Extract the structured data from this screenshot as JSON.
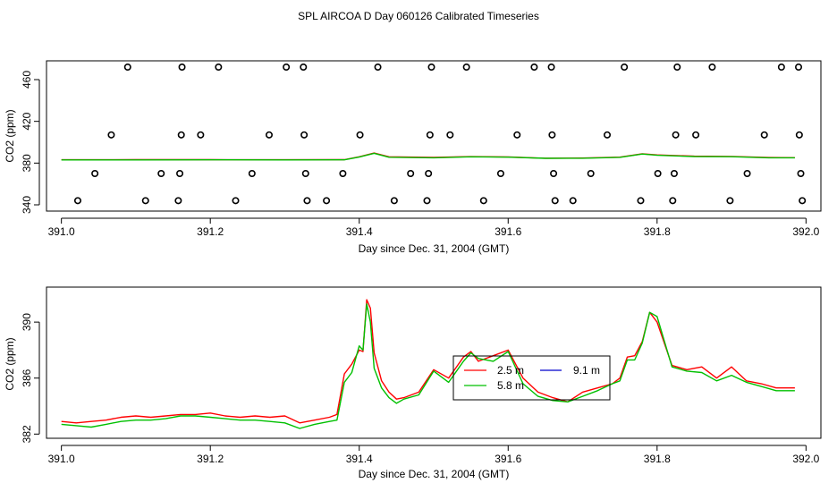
{
  "chart_data": [
    {
      "type": "scatter",
      "title": "SPL AIRCOA D  Day 060126  Calibrated Timeseries",
      "xlabel": "Day since Dec. 31, 2004 (GMT)",
      "ylabel": "CO2 (ppm)",
      "xlim": [
        390.98,
        392.02
      ],
      "ylim": [
        334,
        478
      ],
      "x_ticks": [
        391.0,
        391.2,
        391.4,
        391.6,
        391.8,
        392.0
      ],
      "x_tick_labels": [
        "391.0",
        "391.2",
        "391.4",
        "391.6",
        "391.8",
        "392.0"
      ],
      "y_ticks": [
        340,
        380,
        420,
        460
      ],
      "y_tick_labels": [
        "340",
        "380",
        "420",
        "460"
      ],
      "points": [
        [
          391.022,
          344
        ],
        [
          391.045,
          370
        ],
        [
          391.067,
          407
        ],
        [
          391.089,
          472
        ],
        [
          391.113,
          344
        ],
        [
          391.134,
          370
        ],
        [
          391.157,
          344
        ],
        [
          391.159,
          370
        ],
        [
          391.161,
          407
        ],
        [
          391.162,
          472
        ],
        [
          391.187,
          407
        ],
        [
          391.211,
          472
        ],
        [
          391.234,
          344
        ],
        [
          391.256,
          370
        ],
        [
          391.279,
          407
        ],
        [
          391.302,
          472
        ],
        [
          391.325,
          472
        ],
        [
          391.326,
          407
        ],
        [
          391.328,
          370
        ],
        [
          391.33,
          344
        ],
        [
          391.356,
          344
        ],
        [
          391.378,
          370
        ],
        [
          391.401,
          407
        ],
        [
          391.425,
          472
        ],
        [
          391.447,
          344
        ],
        [
          391.469,
          370
        ],
        [
          391.491,
          344
        ],
        [
          391.493,
          370
        ],
        [
          391.495,
          407
        ],
        [
          391.497,
          472
        ],
        [
          391.522,
          407
        ],
        [
          391.544,
          472
        ],
        [
          391.567,
          344
        ],
        [
          391.59,
          370
        ],
        [
          391.612,
          407
        ],
        [
          391.635,
          472
        ],
        [
          391.658,
          472
        ],
        [
          391.659,
          407
        ],
        [
          391.661,
          370
        ],
        [
          391.663,
          344
        ],
        [
          391.687,
          344
        ],
        [
          391.711,
          370
        ],
        [
          391.733,
          407
        ],
        [
          391.756,
          472
        ],
        [
          391.778,
          344
        ],
        [
          391.801,
          370
        ],
        [
          391.821,
          344
        ],
        [
          391.823,
          370
        ],
        [
          391.825,
          407
        ],
        [
          391.827,
          472
        ],
        [
          391.852,
          407
        ],
        [
          391.874,
          472
        ],
        [
          391.898,
          344
        ],
        [
          391.921,
          370
        ],
        [
          391.944,
          407
        ],
        [
          391.967,
          472
        ],
        [
          391.99,
          472
        ],
        [
          391.991,
          407
        ],
        [
          391.993,
          370
        ],
        [
          391.995,
          344
        ]
      ],
      "series": [
        {
          "name": "2.5 m",
          "color": "#ff0000",
          "x": [
            391.0,
            391.1,
            391.2,
            391.3,
            391.38,
            391.4,
            391.42,
            391.44,
            391.5,
            391.55,
            391.6,
            391.65,
            391.7,
            391.75,
            391.78,
            391.8,
            391.85,
            391.9,
            391.95,
            391.985
          ],
          "y": [
            383.2,
            383.3,
            383.3,
            383.2,
            383.3,
            386.0,
            389.6,
            386.0,
            385.4,
            386.2,
            385.9,
            384.7,
            384.8,
            385.7,
            388.9,
            387.8,
            386.6,
            386.4,
            385.3,
            385.2
          ]
        },
        {
          "name": "5.8 m",
          "color": "#00c000",
          "x": [
            391.0,
            391.1,
            391.2,
            391.3,
            391.38,
            391.4,
            391.42,
            391.44,
            391.5,
            391.55,
            391.6,
            391.65,
            391.7,
            391.75,
            391.78,
            391.8,
            391.85,
            391.9,
            391.95,
            391.985
          ],
          "y": [
            383.0,
            383.0,
            383.1,
            383.0,
            383.1,
            385.8,
            389.4,
            385.6,
            385.1,
            386.0,
            385.7,
            384.6,
            384.7,
            385.5,
            388.7,
            387.5,
            386.3,
            386.1,
            385.1,
            385.1
          ]
        },
        {
          "name": "9.1 m",
          "color": "#0000cc",
          "x": [],
          "y": []
        }
      ]
    },
    {
      "type": "line",
      "title": "",
      "xlabel": "Day since Dec. 31, 2004 (GMT)",
      "ylabel": "CO2 (ppm)",
      "xlim": [
        390.98,
        392.02
      ],
      "ylim": [
        381.7,
        392.5
      ],
      "x_ticks": [
        391.0,
        391.2,
        391.4,
        391.6,
        391.8,
        392.0
      ],
      "x_tick_labels": [
        "391.0",
        "391.2",
        "391.4",
        "391.6",
        "391.8",
        "392.0"
      ],
      "y_ticks": [
        382,
        386,
        390
      ],
      "y_tick_labels": [
        "382",
        "386",
        "390"
      ],
      "legend_position": "center",
      "series": [
        {
          "name": "2.5 m",
          "color": "#ff0000",
          "x": [
            391.0,
            391.02,
            391.04,
            391.06,
            391.08,
            391.1,
            391.12,
            391.14,
            391.16,
            391.18,
            391.2,
            391.22,
            391.24,
            391.26,
            391.28,
            391.3,
            391.32,
            391.34,
            391.36,
            391.37,
            391.38,
            391.39,
            391.4,
            391.405,
            391.41,
            391.415,
            391.42,
            391.43,
            391.44,
            391.45,
            391.46,
            391.48,
            391.5,
            391.52,
            391.54,
            391.55,
            391.56,
            391.58,
            391.6,
            391.62,
            391.64,
            391.66,
            391.68,
            391.7,
            391.72,
            391.74,
            391.75,
            391.76,
            391.77,
            391.78,
            391.79,
            391.8,
            391.82,
            391.84,
            391.86,
            391.88,
            391.9,
            391.92,
            391.94,
            391.96,
            391.985
          ],
          "y": [
            382.9,
            382.8,
            382.9,
            383.0,
            383.2,
            383.3,
            383.2,
            383.3,
            383.4,
            383.4,
            383.5,
            383.3,
            383.2,
            383.3,
            383.2,
            383.3,
            382.8,
            383.0,
            383.2,
            383.4,
            386.3,
            387.0,
            388.0,
            387.9,
            391.6,
            391.0,
            387.8,
            385.8,
            385.0,
            384.5,
            384.6,
            385.0,
            386.6,
            386.0,
            387.5,
            387.9,
            387.2,
            387.6,
            388.0,
            386.0,
            385.0,
            384.6,
            384.3,
            385.0,
            385.3,
            385.6,
            386.0,
            387.5,
            387.6,
            388.6,
            390.7,
            390.0,
            386.9,
            386.6,
            386.8,
            386.0,
            386.8,
            385.8,
            385.6,
            385.3,
            385.3
          ]
        },
        {
          "name": "5.8 m",
          "color": "#00c000",
          "x": [
            391.0,
            391.02,
            391.04,
            391.06,
            391.08,
            391.1,
            391.12,
            391.14,
            391.16,
            391.18,
            391.2,
            391.22,
            391.24,
            391.26,
            391.28,
            391.3,
            391.32,
            391.34,
            391.36,
            391.37,
            391.38,
            391.39,
            391.4,
            391.405,
            391.41,
            391.415,
            391.42,
            391.43,
            391.44,
            391.45,
            391.46,
            391.48,
            391.5,
            391.52,
            391.54,
            391.55,
            391.56,
            391.58,
            391.6,
            391.62,
            391.64,
            391.66,
            391.68,
            391.7,
            391.72,
            391.74,
            391.75,
            391.76,
            391.77,
            391.78,
            391.79,
            391.8,
            391.82,
            391.84,
            391.86,
            391.88,
            391.9,
            391.92,
            391.94,
            391.96,
            391.985
          ],
          "y": [
            382.7,
            382.6,
            382.5,
            382.7,
            382.9,
            383.0,
            383.0,
            383.1,
            383.3,
            383.3,
            383.2,
            383.1,
            383.0,
            383.0,
            382.9,
            382.8,
            382.4,
            382.7,
            382.9,
            383.0,
            385.7,
            386.4,
            388.3,
            388.0,
            391.3,
            390.0,
            386.7,
            385.3,
            384.6,
            384.2,
            384.5,
            384.8,
            386.5,
            385.7,
            387.2,
            387.8,
            387.4,
            387.2,
            387.9,
            385.6,
            384.7,
            384.4,
            384.3,
            384.7,
            385.1,
            385.6,
            385.8,
            387.3,
            387.3,
            388.5,
            390.7,
            390.4,
            386.8,
            386.5,
            386.4,
            385.8,
            386.2,
            385.7,
            385.4,
            385.1,
            385.1
          ]
        },
        {
          "name": "9.1 m",
          "color": "#0000cc",
          "x": [],
          "y": []
        }
      ]
    }
  ]
}
